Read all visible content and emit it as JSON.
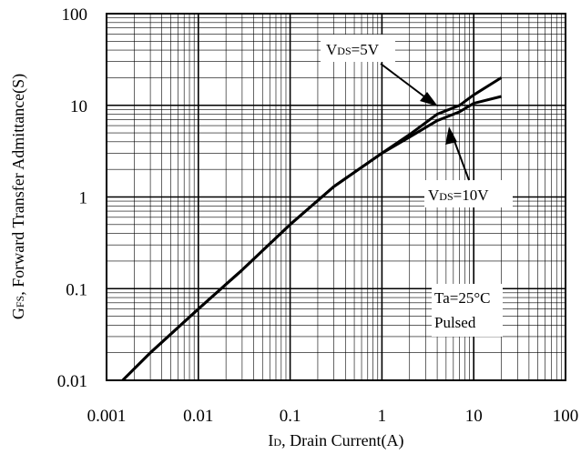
{
  "chart_data": {
    "type": "line",
    "title": "",
    "x_scale": "log",
    "y_scale": "log",
    "xlim": [
      0.001,
      100
    ],
    "ylim": [
      0.01,
      100
    ],
    "grid": true,
    "x_ticks": [
      "0.001",
      "0.01",
      "0.1",
      "1",
      "10",
      "100"
    ],
    "y_ticks": [
      "0.01",
      "0.1",
      "1",
      "10",
      "100"
    ],
    "xlabel": {
      "main": "I",
      "sub": "D",
      "rest": ", Drain Current(A)"
    },
    "ylabel": {
      "main": "G",
      "sub": "FS",
      "rest": ", Forward Transfer Admittance(S)"
    },
    "series": [
      {
        "label": {
          "main": "V",
          "sub": "DS",
          "rest": "=5V"
        },
        "x": [
          0.0015,
          0.003,
          0.01,
          0.03,
          0.1,
          0.3,
          1,
          2,
          4,
          7,
          10,
          20
        ],
        "y": [
          0.01,
          0.02,
          0.06,
          0.16,
          0.5,
          1.3,
          3.0,
          4.8,
          8.0,
          10.0,
          13.0,
          20.0
        ]
      },
      {
        "label": {
          "main": "V",
          "sub": "DS",
          "rest": "=10V"
        },
        "x": [
          0.0015,
          0.003,
          0.01,
          0.03,
          0.1,
          0.3,
          1,
          2,
          4,
          7,
          10,
          20
        ],
        "y": [
          0.01,
          0.02,
          0.06,
          0.16,
          0.5,
          1.3,
          3.0,
          4.5,
          6.8,
          8.5,
          10.5,
          12.5
        ]
      }
    ],
    "annotations": [
      "Ta=25°C",
      "Pulsed"
    ]
  }
}
